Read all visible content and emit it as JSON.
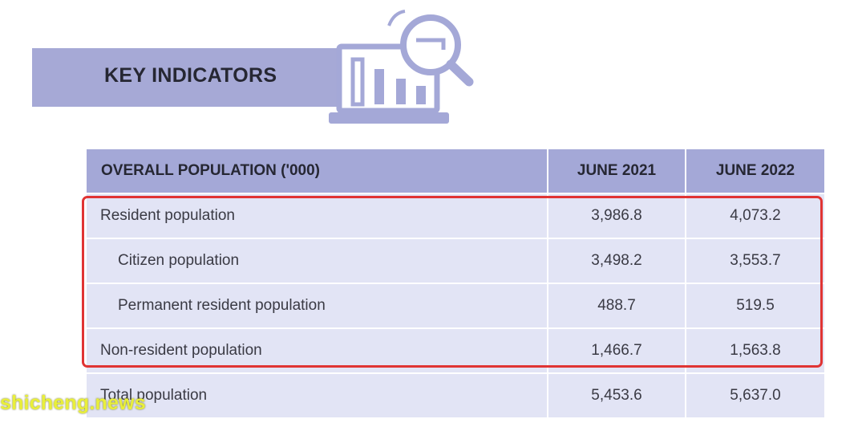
{
  "header": {
    "title": "KEY INDICATORS"
  },
  "icon": {
    "name": "analytics-chart-magnifier-icon"
  },
  "table": {
    "headers": [
      "OVERALL POPULATION ('000)",
      "JUNE 2021",
      "JUNE 2022"
    ],
    "rows": [
      {
        "label": "Resident population",
        "june_2021": "3,986.8",
        "june_2022": "4,073.2"
      },
      {
        "label": "Citizen population",
        "june_2021": "3,498.2",
        "june_2022": "3,553.7"
      },
      {
        "label": "Permanent resident population",
        "june_2021": "488.7",
        "june_2022": "519.5"
      },
      {
        "label": "Non-resident population",
        "june_2021": "1,466.7",
        "june_2022": "1,563.8"
      },
      {
        "label": "Total population",
        "june_2021": "5,453.6",
        "june_2022": "5,637.0"
      }
    ]
  },
  "watermark": {
    "text": "shicheng.news"
  },
  "colors": {
    "banner": "#a6a9d6",
    "header_row": "#a4a8d7",
    "body_row": "#e2e4f5",
    "highlight_border": "#e03434",
    "watermark": "#e9ef3a"
  }
}
